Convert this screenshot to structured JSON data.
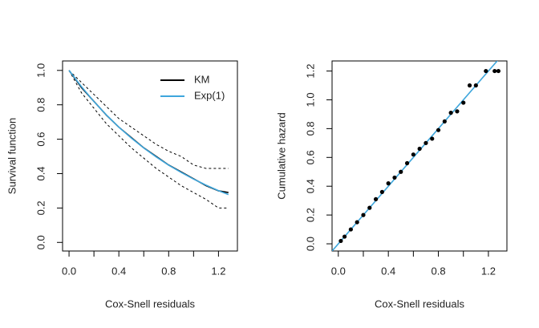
{
  "chart_data": [
    {
      "type": "line",
      "xlabel": "Cox-Snell residuals",
      "ylabel": "Survival function",
      "x": [
        0,
        0.1,
        0.2,
        0.3,
        0.4,
        0.5,
        0.6,
        0.7,
        0.8,
        0.9,
        1.0,
        1.1,
        1.2,
        1.28
      ],
      "series": [
        {
          "name": "KM",
          "color": "#000000",
          "values": [
            1.0,
            0.9,
            0.82,
            0.74,
            0.67,
            0.61,
            0.55,
            0.5,
            0.45,
            0.41,
            0.37,
            0.33,
            0.3,
            0.29
          ],
          "lower": [
            1.0,
            0.87,
            0.78,
            0.69,
            0.62,
            0.55,
            0.49,
            0.43,
            0.38,
            0.33,
            0.29,
            0.25,
            0.2,
            0.2
          ],
          "upper": [
            1.0,
            0.93,
            0.86,
            0.79,
            0.72,
            0.67,
            0.62,
            0.57,
            0.53,
            0.5,
            0.45,
            0.43,
            0.43,
            0.43
          ]
        },
        {
          "name": "Exp(1)",
          "color": "#3ea6dc",
          "values": [
            1.0,
            0.905,
            0.819,
            0.741,
            0.67,
            0.607,
            0.549,
            0.497,
            0.449,
            0.407,
            0.368,
            0.333,
            0.301,
            0.278
          ]
        }
      ],
      "xlim": [
        -0.052,
        1.352
      ],
      "ylim": [
        -0.05,
        1.055
      ],
      "xticks": [
        {
          "value": 0,
          "label": "0.0"
        },
        {
          "value": 0.2,
          "label": null
        },
        0.4,
        {
          "value": 0.6,
          "label": null
        },
        0.8,
        {
          "value": 1.0,
          "label": null
        },
        1.2
      ],
      "yticks": [
        {
          "value": 0,
          "label": "0.0"
        },
        0.2,
        0.4,
        0.6,
        0.8,
        {
          "value": 1,
          "label": "1.0"
        }
      ],
      "legend": "top-right"
    },
    {
      "type": "scatter",
      "xlabel": "Cox-Snell residuals",
      "ylabel": "Cumulative hazard",
      "x": [
        0.02,
        0.05,
        0.1,
        0.15,
        0.2,
        0.25,
        0.3,
        0.35,
        0.4,
        0.45,
        0.5,
        0.55,
        0.6,
        0.65,
        0.7,
        0.75,
        0.8,
        0.85,
        0.9,
        0.95,
        1.0,
        1.05,
        1.1,
        1.18,
        1.25,
        1.28
      ],
      "values": [
        0.02,
        0.05,
        0.1,
        0.15,
        0.2,
        0.25,
        0.31,
        0.36,
        0.42,
        0.46,
        0.5,
        0.56,
        0.62,
        0.66,
        0.7,
        0.73,
        0.79,
        0.85,
        0.91,
        0.92,
        0.98,
        1.1,
        1.1,
        1.2,
        1.2,
        1.2
      ],
      "color": "#000000",
      "reference_line": {
        "intercept": 0,
        "slope": 1,
        "color": "#3ea6dc"
      },
      "xlim": [
        -0.05,
        1.348
      ],
      "ylim": [
        -0.05,
        1.27
      ],
      "xticks": [
        {
          "value": 0,
          "label": "0.0"
        },
        {
          "value": 0.2,
          "label": null
        },
        0.4,
        {
          "value": 0.6,
          "label": null
        },
        0.8,
        {
          "value": 1.0,
          "label": null
        },
        1.2
      ],
      "yticks": [
        {
          "value": 0,
          "label": "0.0"
        },
        0.2,
        0.4,
        0.6,
        0.8,
        {
          "value": 1,
          "label": "1.0"
        },
        1.2
      ]
    }
  ]
}
